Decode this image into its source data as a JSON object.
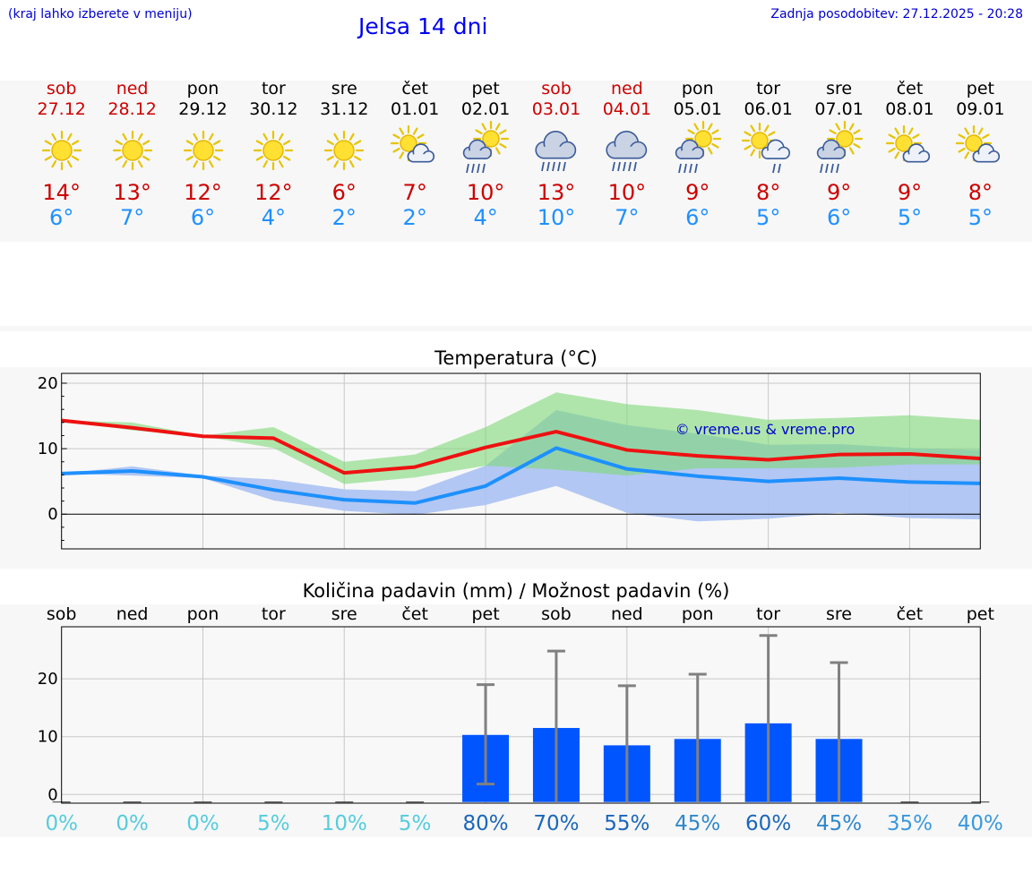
{
  "header": {
    "hint": "(kraj lahko izberete v meniju)",
    "title": "Jelsa 14 dni",
    "updated": "Zadnja posodobitev: 27.12.2025 - 20:28"
  },
  "forecast": [
    {
      "day": "sob",
      "date": "27.12",
      "weekend": true,
      "icon": "sun-icon",
      "max": "14°",
      "min": "6°"
    },
    {
      "day": "ned",
      "date": "28.12",
      "weekend": true,
      "icon": "sun-icon",
      "max": "13°",
      "min": "7°"
    },
    {
      "day": "pon",
      "date": "29.12",
      "weekend": false,
      "icon": "sun-icon",
      "max": "12°",
      "min": "6°"
    },
    {
      "day": "tor",
      "date": "30.12",
      "weekend": false,
      "icon": "sun-icon",
      "max": "12°",
      "min": "4°"
    },
    {
      "day": "sre",
      "date": "31.12",
      "weekend": false,
      "icon": "sun-icon",
      "max": "6°",
      "min": "2°"
    },
    {
      "day": "čet",
      "date": "01.01",
      "weekend": false,
      "icon": "sun-cloud-icon",
      "max": "7°",
      "min": "2°"
    },
    {
      "day": "pet",
      "date": "02.01",
      "weekend": false,
      "icon": "sun-cloud-rain-icon",
      "max": "10°",
      "min": "4°"
    },
    {
      "day": "sob",
      "date": "03.01",
      "weekend": true,
      "icon": "cloud-rain-icon",
      "max": "13°",
      "min": "10°"
    },
    {
      "day": "ned",
      "date": "04.01",
      "weekend": true,
      "icon": "cloud-rain-icon",
      "max": "10°",
      "min": "7°"
    },
    {
      "day": "pon",
      "date": "05.01",
      "weekend": false,
      "icon": "sun-cloud-rain-icon",
      "max": "9°",
      "min": "6°"
    },
    {
      "day": "tor",
      "date": "06.01",
      "weekend": false,
      "icon": "sun-cloud-drizzle-icon",
      "max": "8°",
      "min": "5°"
    },
    {
      "day": "sre",
      "date": "07.01",
      "weekend": false,
      "icon": "sun-cloud-rain-icon",
      "max": "9°",
      "min": "6°"
    },
    {
      "day": "čet",
      "date": "08.01",
      "weekend": false,
      "icon": "sun-cloud-icon",
      "max": "9°",
      "min": "5°"
    },
    {
      "day": "pet",
      "date": "09.01",
      "weekend": false,
      "icon": "sun-cloud-icon",
      "max": "8°",
      "min": "5°"
    }
  ],
  "colors": {
    "max_line": "#ee1111",
    "min_line": "#1e90ff",
    "max_band": "#a8e6a3",
    "min_band": "#aec4f2",
    "overlap_band": "#80c8a8",
    "rain_bar": "#0055ff",
    "error_bar": "#808080",
    "watermark": "#0000cc"
  },
  "chart_data": [
    {
      "type": "line",
      "title": "Temperatura (°C)",
      "xlabel": "",
      "ylabel": "",
      "ylim": [
        -5.3,
        21.5
      ],
      "yticks": [
        0,
        10,
        20
      ],
      "grid": true,
      "watermark": "© vreme.us & vreme.pro",
      "x": [
        0,
        1,
        2,
        3,
        4,
        5,
        6,
        7,
        8,
        9,
        10,
        11,
        12,
        13
      ],
      "series": [
        {
          "name": "max",
          "values": [
            14.3,
            13.2,
            11.9,
            11.6,
            6.3,
            7.2,
            10.2,
            12.6,
            9.8,
            8.9,
            8.3,
            9.1,
            9.2,
            8.5
          ],
          "band_low": [
            14.3,
            12.8,
            11.9,
            10.1,
            4.6,
            5.6,
            7.4,
            6.8,
            5.9,
            7.0,
            7.0,
            7.1,
            7.6,
            7.6
          ],
          "band_high": [
            14.3,
            14.0,
            12.0,
            13.3,
            8.0,
            9.1,
            13.3,
            18.6,
            16.8,
            15.9,
            14.4,
            14.7,
            15.1,
            14.4
          ]
        },
        {
          "name": "min",
          "values": [
            6.2,
            6.6,
            5.7,
            3.7,
            2.2,
            1.7,
            4.3,
            10.1,
            6.9,
            5.8,
            5.0,
            5.5,
            4.9,
            4.7
          ],
          "band_low": [
            6.2,
            5.9,
            5.5,
            2.1,
            0.5,
            -0.1,
            1.4,
            4.3,
            0.2,
            -1.1,
            -0.7,
            0.2,
            -0.6,
            -0.8
          ],
          "band_high": [
            6.2,
            7.3,
            5.9,
            5.3,
            3.8,
            3.5,
            7.4,
            15.9,
            13.6,
            12.3,
            10.6,
            10.7,
            10.1,
            9.8
          ]
        }
      ]
    },
    {
      "type": "bar",
      "title": "Količina padavin (mm) / Možnost padavin (%)",
      "categories": [
        "sob",
        "ned",
        "pon",
        "tor",
        "sre",
        "čet",
        "pet",
        "sob",
        "ned",
        "pon",
        "tor",
        "sre",
        "čet",
        "pet"
      ],
      "values": [
        0,
        0,
        0,
        0,
        0,
        0,
        10.3,
        11.5,
        8.5,
        9.6,
        12.3,
        9.6,
        0,
        0
      ],
      "error_high": [
        0,
        0,
        0,
        0,
        0,
        0,
        19,
        24.8,
        18.8,
        20.8,
        27.5,
        22.8,
        0,
        0
      ],
      "error_low": [
        0,
        0,
        0,
        0,
        0,
        0,
        1.8,
        0,
        0,
        0,
        0,
        0,
        0,
        0
      ],
      "probability": [
        "0%",
        "0%",
        "0%",
        "5%",
        "10%",
        "5%",
        "80%",
        "70%",
        "55%",
        "45%",
        "60%",
        "45%",
        "35%",
        "40%"
      ],
      "probability_colors": [
        "#55ccdd",
        "#55ccdd",
        "#55ccdd",
        "#55ccdd",
        "#55ccdd",
        "#55ccdd",
        "#1a66bb",
        "#1a66bb",
        "#1a66bb",
        "#2e88cc",
        "#1a66bb",
        "#2e88cc",
        "#3a99dd",
        "#3a99dd"
      ],
      "ylim": [
        -1.5,
        29
      ],
      "yticks": [
        0,
        10,
        20
      ],
      "grid": true
    }
  ]
}
